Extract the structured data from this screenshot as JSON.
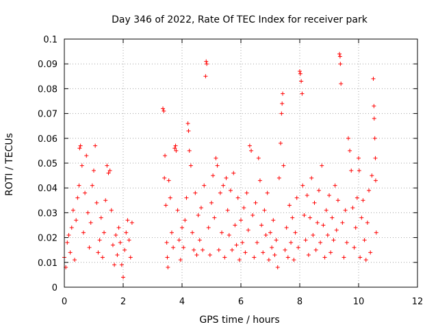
{
  "chart_data": {
    "type": "scatter",
    "title": "Day 346 of 2022, Rate Of TEC Index for receiver park",
    "xlabel": "GPS time / hours",
    "ylabel": "ROTI / TECUs",
    "xlim": [
      0,
      12
    ],
    "ylim": [
      0,
      0.1
    ],
    "xticks": [
      0,
      2,
      4,
      6,
      8,
      10,
      12
    ],
    "xtick_labels": [
      "0",
      "2",
      "4",
      "6",
      "8",
      "10",
      "12"
    ],
    "yticks": [
      0,
      0.01,
      0.02,
      0.03,
      0.04,
      0.05,
      0.06,
      0.07,
      0.08,
      0.09,
      0.1
    ],
    "ytick_labels": [
      "0",
      "0.01",
      "0.02",
      "0.03",
      "0.04",
      "0.05",
      "0.06",
      "0.07",
      "0.08",
      "0.09",
      "0.1"
    ],
    "grid": true,
    "marker": "+",
    "marker_color": "#ff0000",
    "series": [
      {
        "name": "ROTI",
        "points": [
          [
            0.0,
            0.012
          ],
          [
            0.05,
            0.008
          ],
          [
            0.1,
            0.018
          ],
          [
            0.15,
            0.021
          ],
          [
            0.2,
            0.014
          ],
          [
            0.25,
            0.024
          ],
          [
            0.3,
            0.031
          ],
          [
            0.35,
            0.011
          ],
          [
            0.4,
            0.027
          ],
          [
            0.45,
            0.036
          ],
          [
            0.5,
            0.041
          ],
          [
            0.52,
            0.056
          ],
          [
            0.55,
            0.057
          ],
          [
            0.6,
            0.049
          ],
          [
            0.65,
            0.022
          ],
          [
            0.7,
            0.038
          ],
          [
            0.75,
            0.053
          ],
          [
            0.8,
            0.03
          ],
          [
            0.85,
            0.016
          ],
          [
            0.9,
            0.026
          ],
          [
            0.95,
            0.041
          ],
          [
            1.0,
            0.047
          ],
          [
            1.05,
            0.057
          ],
          [
            1.1,
            0.034
          ],
          [
            1.15,
            0.014
          ],
          [
            1.2,
            0.019
          ],
          [
            1.25,
            0.028
          ],
          [
            1.3,
            0.012
          ],
          [
            1.35,
            0.022
          ],
          [
            1.4,
            0.035
          ],
          [
            1.45,
            0.049
          ],
          [
            1.5,
            0.046
          ],
          [
            1.55,
            0.047
          ],
          [
            1.6,
            0.031
          ],
          [
            1.65,
            0.017
          ],
          [
            1.7,
            0.009
          ],
          [
            1.75,
            0.021
          ],
          [
            1.8,
            0.013
          ],
          [
            1.85,
            0.024
          ],
          [
            1.9,
            0.018
          ],
          [
            1.95,
            0.009
          ],
          [
            2.0,
            0.004
          ],
          [
            2.05,
            0.015
          ],
          [
            2.1,
            0.022
          ],
          [
            2.15,
            0.027
          ],
          [
            2.2,
            0.019
          ],
          [
            2.25,
            0.012
          ],
          [
            2.3,
            0.026
          ],
          [
            3.35,
            0.072
          ],
          [
            3.38,
            0.071
          ],
          [
            3.4,
            0.044
          ],
          [
            3.42,
            0.053
          ],
          [
            3.45,
            0.033
          ],
          [
            3.48,
            0.018
          ],
          [
            3.5,
            0.012
          ],
          [
            3.52,
            0.008
          ],
          [
            3.55,
            0.043
          ],
          [
            3.6,
            0.036
          ],
          [
            3.65,
            0.022
          ],
          [
            3.7,
            0.016
          ],
          [
            3.75,
            0.056
          ],
          [
            3.78,
            0.057
          ],
          [
            3.8,
            0.055
          ],
          [
            3.85,
            0.031
          ],
          [
            3.9,
            0.019
          ],
          [
            3.95,
            0.011
          ],
          [
            4.0,
            0.024
          ],
          [
            4.05,
            0.016
          ],
          [
            4.1,
            0.027
          ],
          [
            4.15,
            0.036
          ],
          [
            4.2,
            0.066
          ],
          [
            4.22,
            0.063
          ],
          [
            4.25,
            0.055
          ],
          [
            4.3,
            0.049
          ],
          [
            4.35,
            0.022
          ],
          [
            4.4,
            0.015
          ],
          [
            4.45,
            0.038
          ],
          [
            4.5,
            0.013
          ],
          [
            4.55,
            0.029
          ],
          [
            4.6,
            0.019
          ],
          [
            4.65,
            0.032
          ],
          [
            4.7,
            0.015
          ],
          [
            4.75,
            0.041
          ],
          [
            4.8,
            0.085
          ],
          [
            4.82,
            0.091
          ],
          [
            4.84,
            0.09
          ],
          [
            4.9,
            0.024
          ],
          [
            4.95,
            0.013
          ],
          [
            5.0,
            0.034
          ],
          [
            5.05,
            0.045
          ],
          [
            5.1,
            0.028
          ],
          [
            5.15,
            0.052
          ],
          [
            5.2,
            0.049
          ],
          [
            5.25,
            0.015
          ],
          [
            5.3,
            0.038
          ],
          [
            5.35,
            0.022
          ],
          [
            5.4,
            0.041
          ],
          [
            5.45,
            0.012
          ],
          [
            5.5,
            0.044
          ],
          [
            5.55,
            0.031
          ],
          [
            5.6,
            0.021
          ],
          [
            5.65,
            0.039
          ],
          [
            5.7,
            0.015
          ],
          [
            5.75,
            0.046
          ],
          [
            5.8,
            0.025
          ],
          [
            5.85,
            0.017
          ],
          [
            5.9,
            0.036
          ],
          [
            5.95,
            0.011
          ],
          [
            6.0,
            0.027
          ],
          [
            6.05,
            0.018
          ],
          [
            6.1,
            0.032
          ],
          [
            6.15,
            0.014
          ],
          [
            6.2,
            0.038
          ],
          [
            6.25,
            0.023
          ],
          [
            6.3,
            0.057
          ],
          [
            6.35,
            0.055
          ],
          [
            6.4,
            0.029
          ],
          [
            6.45,
            0.012
          ],
          [
            6.5,
            0.034
          ],
          [
            6.55,
            0.018
          ],
          [
            6.6,
            0.052
          ],
          [
            6.65,
            0.043
          ],
          [
            6.7,
            0.025
          ],
          [
            6.75,
            0.014
          ],
          [
            6.8,
            0.031
          ],
          [
            6.85,
            0.021
          ],
          [
            6.9,
            0.038
          ],
          [
            6.95,
            0.011
          ],
          [
            7.0,
            0.022
          ],
          [
            7.05,
            0.016
          ],
          [
            7.1,
            0.027
          ],
          [
            7.15,
            0.013
          ],
          [
            7.2,
            0.019
          ],
          [
            7.25,
            0.008
          ],
          [
            7.3,
            0.044
          ],
          [
            7.35,
            0.058
          ],
          [
            7.38,
            0.07
          ],
          [
            7.4,
            0.074
          ],
          [
            7.42,
            0.078
          ],
          [
            7.45,
            0.049
          ],
          [
            7.5,
            0.015
          ],
          [
            7.55,
            0.024
          ],
          [
            7.6,
            0.012
          ],
          [
            7.65,
            0.033
          ],
          [
            7.7,
            0.018
          ],
          [
            7.75,
            0.028
          ],
          [
            7.8,
            0.011
          ],
          [
            7.85,
            0.022
          ],
          [
            7.9,
            0.036
          ],
          [
            7.95,
            0.016
          ],
          [
            8.0,
            0.087
          ],
          [
            8.02,
            0.086
          ],
          [
            8.05,
            0.083
          ],
          [
            8.08,
            0.078
          ],
          [
            8.1,
            0.041
          ],
          [
            8.15,
            0.029
          ],
          [
            8.2,
            0.019
          ],
          [
            8.25,
            0.037
          ],
          [
            8.3,
            0.013
          ],
          [
            8.35,
            0.028
          ],
          [
            8.4,
            0.044
          ],
          [
            8.45,
            0.021
          ],
          [
            8.5,
            0.034
          ],
          [
            8.55,
            0.015
          ],
          [
            8.6,
            0.026
          ],
          [
            8.65,
            0.039
          ],
          [
            8.7,
            0.018
          ],
          [
            8.75,
            0.049
          ],
          [
            8.8,
            0.025
          ],
          [
            8.85,
            0.012
          ],
          [
            8.9,
            0.031
          ],
          [
            8.95,
            0.021
          ],
          [
            9.0,
            0.037
          ],
          [
            9.05,
            0.014
          ],
          [
            9.1,
            0.028
          ],
          [
            9.15,
            0.019
          ],
          [
            9.2,
            0.041
          ],
          [
            9.25,
            0.023
          ],
          [
            9.3,
            0.035
          ],
          [
            9.35,
            0.094
          ],
          [
            9.37,
            0.093
          ],
          [
            9.38,
            0.09
          ],
          [
            9.4,
            0.082
          ],
          [
            9.45,
            0.026
          ],
          [
            9.5,
            0.012
          ],
          [
            9.55,
            0.031
          ],
          [
            9.6,
            0.018
          ],
          [
            9.65,
            0.06
          ],
          [
            9.7,
            0.055
          ],
          [
            9.75,
            0.047
          ],
          [
            9.8,
            0.032
          ],
          [
            9.85,
            0.016
          ],
          [
            9.9,
            0.024
          ],
          [
            9.95,
            0.036
          ],
          [
            10.0,
            0.052
          ],
          [
            10.02,
            0.047
          ],
          [
            10.05,
            0.012
          ],
          [
            10.1,
            0.028
          ],
          [
            10.15,
            0.035
          ],
          [
            10.2,
            0.019
          ],
          [
            10.25,
            0.011
          ],
          [
            10.3,
            0.026
          ],
          [
            10.35,
            0.039
          ],
          [
            10.4,
            0.014
          ],
          [
            10.45,
            0.045
          ],
          [
            10.5,
            0.084
          ],
          [
            10.52,
            0.073
          ],
          [
            10.53,
            0.068
          ],
          [
            10.55,
            0.06
          ],
          [
            10.57,
            0.052
          ],
          [
            10.58,
            0.043
          ],
          [
            10.6,
            0.022
          ]
        ]
      }
    ]
  }
}
